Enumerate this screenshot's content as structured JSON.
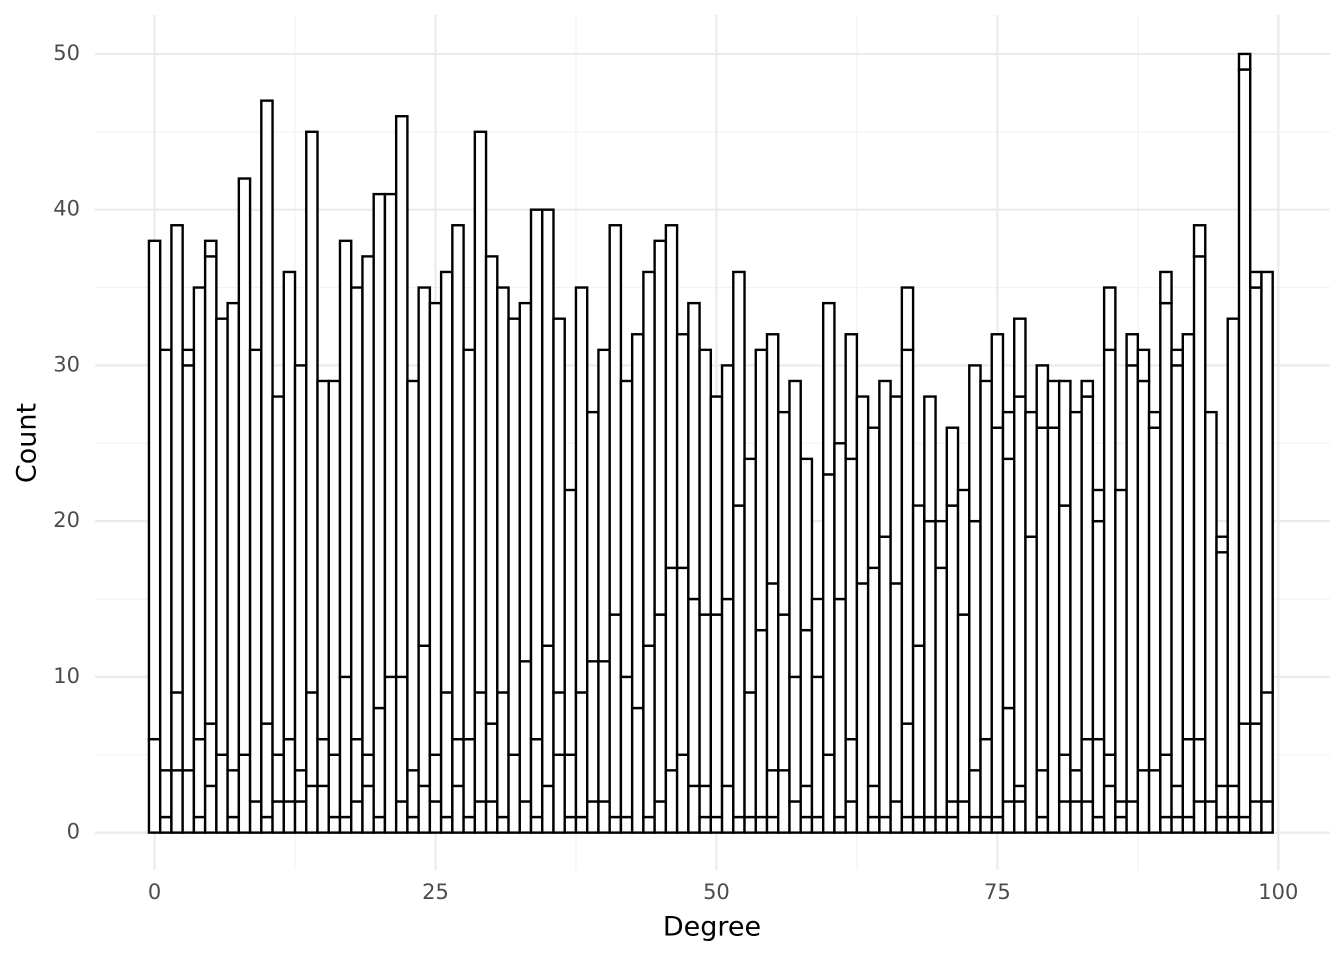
{
  "chart_data": {
    "type": "histogram",
    "x_label": "Degree",
    "y_label": "Count",
    "bins": [
      -0.5,
      0.5,
      1.5,
      2.5,
      3.5,
      4.5,
      5.5,
      6.5,
      7.5,
      8.5,
      9.5,
      10.5,
      11.5,
      12.5,
      13.5,
      14.5,
      15.5,
      16.5,
      17.5,
      18.5,
      19.5,
      20.5,
      21.5,
      22.5,
      23.5,
      24.5,
      25.5,
      26.5,
      27.5,
      28.5,
      29.5,
      30.5,
      31.5,
      32.5,
      33.5,
      34.5,
      35.5,
      36.5,
      37.5,
      38.5,
      39.5,
      40.5,
      41.5,
      42.5,
      43.5,
      44.5,
      45.5,
      46.5,
      47.5,
      48.5,
      49.5,
      50.5,
      51.5,
      52.5,
      53.5,
      54.5,
      55.5,
      56.5,
      57.5,
      58.5,
      59.5,
      60.5,
      61.5,
      62.5,
      63.5,
      64.5,
      65.5,
      66.5,
      67.5,
      68.5,
      69.5,
      70.5,
      71.5,
      72.5,
      73.5,
      74.5,
      75.5,
      76.5,
      77.5,
      78.5,
      79.5,
      80.5,
      81.5,
      82.5,
      83.5,
      84.5,
      85.5,
      86.5,
      87.5,
      88.5,
      89.5,
      90.5,
      91.5,
      92.5,
      93.5,
      94.5,
      95.5,
      96.5,
      97.5,
      98.5,
      99.5
    ],
    "series": [
      {
        "color": "#ffffff",
        "values": [
          0,
          0,
          0,
          0,
          0,
          3,
          0,
          0,
          0,
          0,
          0,
          0,
          0,
          0,
          0,
          0,
          0,
          0,
          0,
          0,
          0,
          0,
          0,
          0,
          0,
          0,
          0,
          0,
          0,
          0,
          0,
          0,
          0,
          0,
          0,
          0,
          0,
          0,
          0,
          0,
          0,
          0,
          0,
          0,
          0,
          0,
          0,
          0,
          0,
          1,
          0,
          0,
          0,
          0,
          0,
          1,
          0,
          0,
          1,
          0,
          0,
          0,
          2,
          0,
          1,
          0,
          0,
          1,
          0,
          0,
          0,
          1,
          0,
          1,
          0,
          0,
          2,
          2,
          0,
          1,
          0,
          2,
          0,
          2,
          1,
          3,
          0,
          0,
          0,
          0,
          1,
          1,
          0,
          2,
          0,
          1,
          0,
          1,
          2,
          0
        ]
      },
      {
        "color": "#ffffff",
        "values": [
          0,
          1,
          4,
          4,
          1,
          4,
          0,
          1,
          0,
          0,
          1,
          2,
          2,
          2,
          3,
          3,
          1,
          1,
          2,
          3,
          1,
          0,
          2,
          1,
          3,
          2,
          1,
          3,
          1,
          2,
          2,
          1,
          0,
          2,
          1,
          3,
          5,
          1,
          1,
          2,
          2,
          1,
          1,
          0,
          1,
          2,
          4,
          5,
          3,
          2,
          1,
          3,
          1,
          1,
          1,
          3,
          4,
          2,
          2,
          1,
          5,
          1,
          4,
          0,
          2,
          1,
          2,
          6,
          1,
          1,
          1,
          1,
          2,
          3,
          1,
          1,
          6,
          1,
          0,
          3,
          0,
          3,
          2,
          4,
          5,
          2,
          1,
          2,
          4,
          4,
          4,
          2,
          1,
          4,
          0,
          2,
          1,
          6,
          5,
          2
        ]
      },
      {
        "color": "#ffffff",
        "values": [
          6,
          3,
          5,
          26,
          5,
          30,
          5,
          3,
          5,
          2,
          6,
          3,
          4,
          2,
          6,
          3,
          4,
          9,
          4,
          2,
          7,
          10,
          8,
          3,
          9,
          3,
          8,
          3,
          5,
          7,
          5,
          8,
          5,
          9,
          5,
          9,
          4,
          4,
          8,
          9,
          9,
          13,
          9,
          8,
          11,
          12,
          13,
          12,
          12,
          11,
          13,
          12,
          20,
          8,
          12,
          12,
          10,
          8,
          10,
          9,
          18,
          14,
          18,
          16,
          14,
          18,
          14,
          24,
          11,
          19,
          16,
          19,
          12,
          16,
          5,
          25,
          16,
          25,
          19,
          22,
          26,
          16,
          2,
          22,
          14,
          26,
          1,
          28,
          25,
          22,
          29,
          27,
          5,
          31,
          2,
          15,
          2,
          42,
          28,
          7
        ]
      },
      {
        "color": "#ffffff",
        "values": [
          32,
          27,
          30,
          1,
          29,
          1,
          28,
          30,
          37,
          29,
          40,
          23,
          30,
          26,
          36,
          23,
          24,
          28,
          29,
          32,
          33,
          31,
          36,
          25,
          23,
          29,
          27,
          33,
          25,
          36,
          30,
          26,
          28,
          23,
          34,
          28,
          24,
          17,
          26,
          16,
          20,
          25,
          19,
          24,
          24,
          24,
          22,
          15,
          19,
          17,
          14,
          15,
          15,
          15,
          18,
          16,
          13,
          19,
          11,
          5,
          11,
          10,
          8,
          12,
          9,
          10,
          12,
          4,
          9,
          8,
          3,
          5,
          8,
          10,
          23,
          6,
          3,
          5,
          8,
          4,
          3,
          8,
          23,
          1,
          2,
          4,
          20,
          2,
          2,
          1,
          2,
          1,
          26,
          2,
          25,
          1,
          30,
          1,
          1,
          27
        ]
      }
    ],
    "stroke": "#000000",
    "xlim": [
      -5.3,
      104.6
    ],
    "ylim": [
      -2.4,
      52.5
    ],
    "xticks": [
      0,
      25,
      50,
      75,
      100
    ],
    "yticks": [
      0,
      10,
      20,
      30,
      40,
      50
    ],
    "grid": true
  }
}
